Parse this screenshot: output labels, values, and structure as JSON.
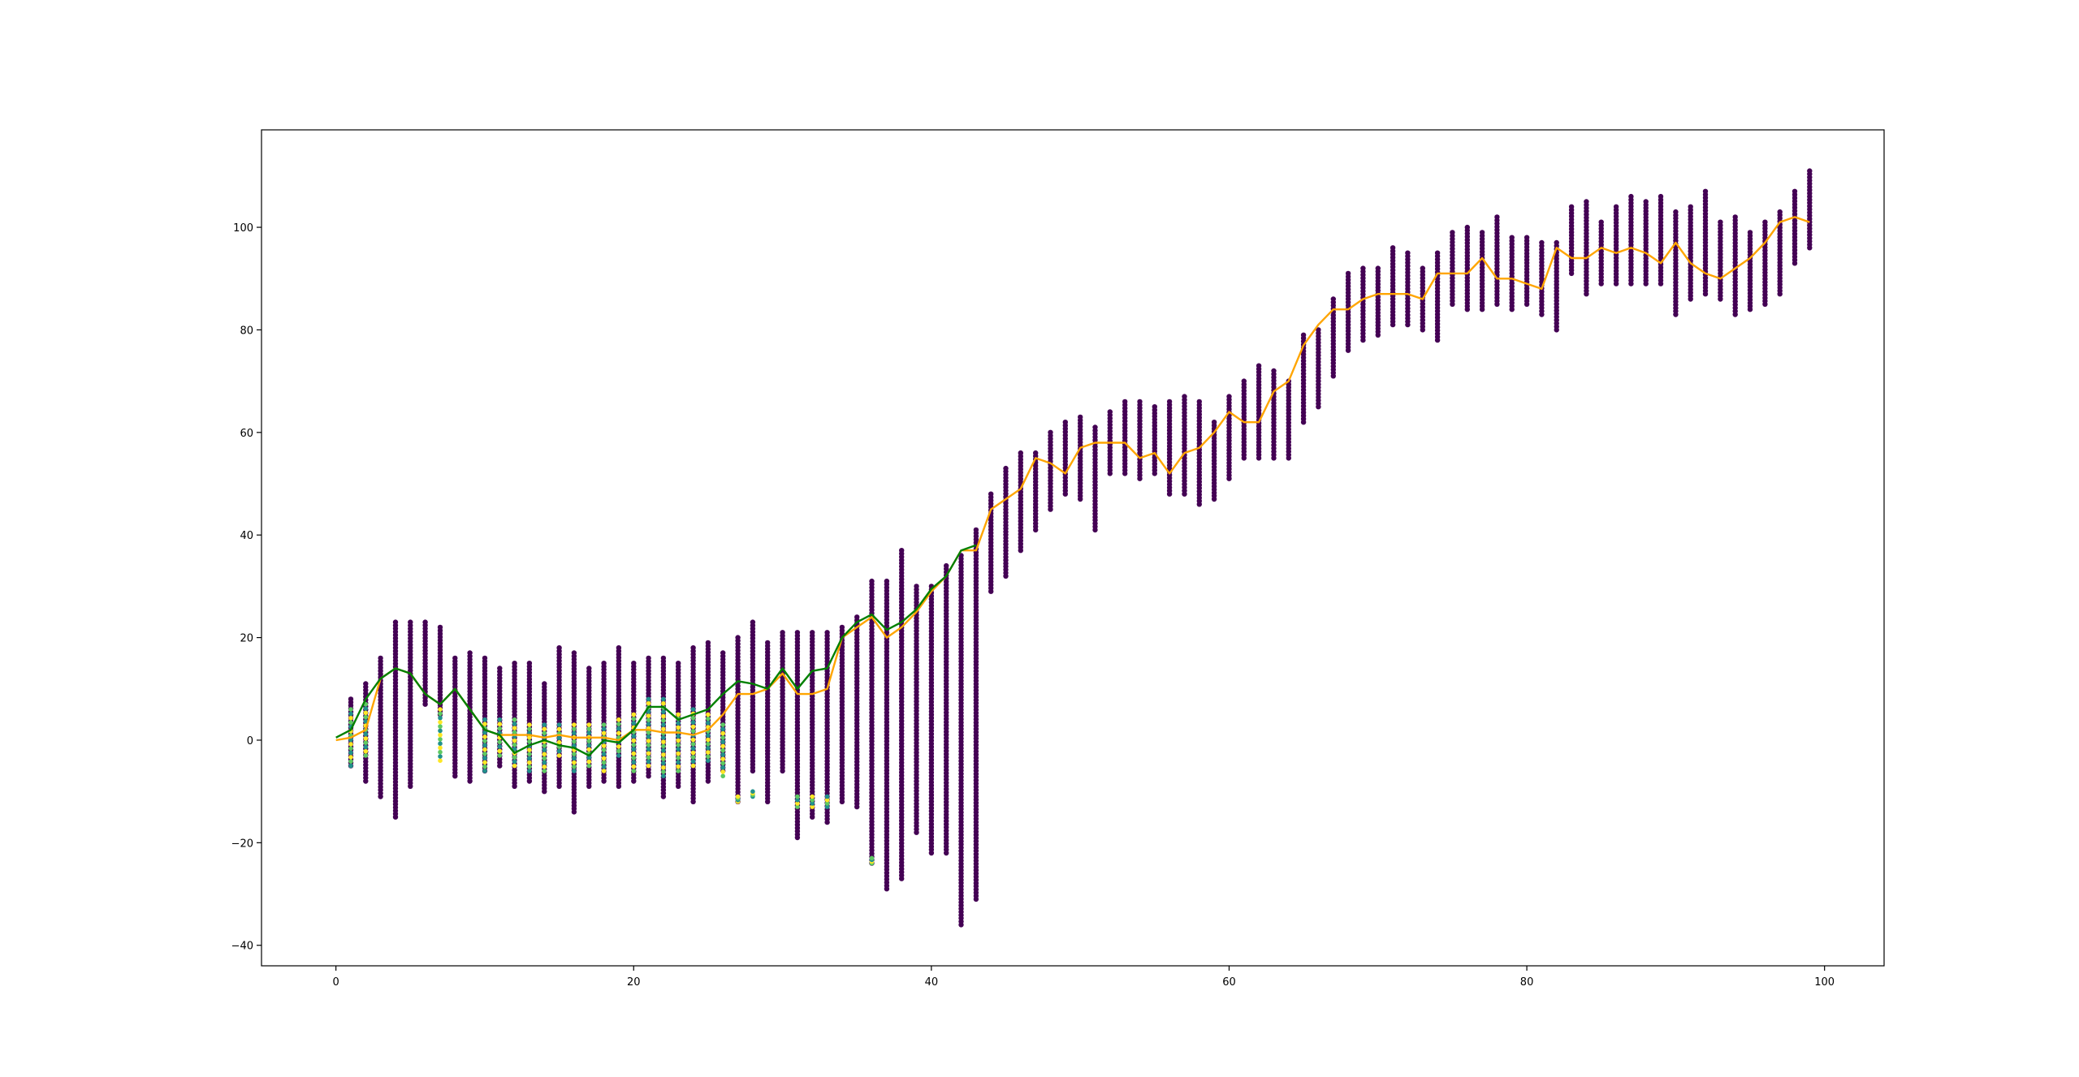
{
  "chart_data": {
    "type": "scatter",
    "title": "",
    "xlabel": "",
    "ylabel": "",
    "xlim": [
      -5,
      104
    ],
    "ylim": [
      -44,
      119
    ],
    "x_ticks": [
      0,
      20,
      40,
      60,
      80,
      100
    ],
    "y_ticks": [
      -40,
      -20,
      0,
      20,
      40,
      60,
      80,
      100
    ],
    "x_tick_labels": [
      "0",
      "20",
      "40",
      "60",
      "80",
      "100"
    ],
    "y_tick_labels": [
      "−40",
      "−20",
      "0",
      "20",
      "40",
      "60",
      "80",
      "100"
    ],
    "grid": false,
    "legend": "none",
    "colors": {
      "scatter_primary": "#440154",
      "scatter_teal": "#21918c",
      "scatter_green": "#5ec962",
      "scatter_yellow": "#fde725",
      "line_green": "#008000",
      "line_orange": "#ffa500"
    },
    "series": [
      {
        "kind": "line",
        "color": "#ffa500",
        "x": [
          0,
          1,
          2,
          3,
          4,
          5,
          6,
          7,
          8,
          9,
          10,
          11,
          12,
          13,
          14,
          15,
          16,
          17,
          18,
          19,
          20,
          21,
          22,
          23,
          24,
          25,
          26,
          27,
          28,
          29,
          30,
          31,
          32,
          33,
          34,
          35,
          36,
          37,
          38,
          39,
          40,
          41,
          42,
          43,
          44,
          45,
          46,
          47,
          48,
          49,
          50,
          51,
          52,
          53,
          54,
          55,
          56,
          57,
          58,
          59,
          60,
          61,
          62,
          63,
          64,
          65,
          66,
          67,
          68,
          69,
          70,
          71,
          72,
          73,
          74,
          75,
          76,
          77,
          78,
          79,
          80,
          81,
          82,
          83,
          84,
          85,
          86,
          87,
          88,
          89,
          90,
          91,
          92,
          93,
          94,
          95,
          96,
          97,
          98,
          99
        ],
        "y": [
          0,
          0.5,
          2,
          12,
          14,
          13,
          9,
          7,
          10,
          6,
          2,
          1,
          1,
          1,
          0.5,
          1,
          0.5,
          0.5,
          0.5,
          0,
          2,
          2,
          1.5,
          1.5,
          1,
          2,
          5,
          9,
          9,
          10,
          13,
          9,
          9,
          10,
          20,
          22,
          24,
          20,
          22,
          25,
          29,
          32,
          37,
          37,
          45,
          47,
          49,
          55,
          54,
          52,
          57,
          58,
          58,
          58,
          55,
          56,
          52,
          56,
          57,
          60,
          64,
          62,
          62,
          68,
          70,
          77,
          81,
          84,
          84,
          86,
          87,
          87,
          87,
          86,
          91,
          91,
          91,
          94,
          90,
          90,
          89,
          88,
          96,
          94,
          94,
          96,
          95,
          96,
          95,
          93,
          97,
          93,
          91,
          90,
          92,
          94,
          97,
          101,
          102,
          101
        ]
      },
      {
        "kind": "line",
        "color": "#008000",
        "x": [
          0,
          1,
          2,
          3,
          4,
          5,
          6,
          7,
          8,
          9,
          10,
          11,
          12,
          13,
          14,
          15,
          16,
          17,
          18,
          19,
          20,
          21,
          22,
          23,
          24,
          25,
          26,
          27,
          28,
          29,
          30,
          31,
          32,
          33,
          34,
          35,
          36,
          37,
          38,
          39,
          40,
          41,
          42,
          43
        ],
        "y": [
          0.5,
          2,
          8,
          12,
          14,
          13,
          9,
          7,
          10,
          6,
          2,
          1,
          -2.5,
          -1,
          0,
          -1,
          -1.5,
          -3,
          0,
          -0.5,
          2,
          6.5,
          6.5,
          4,
          5,
          6,
          9,
          11.5,
          11,
          10,
          14,
          10,
          13.5,
          14,
          20,
          23,
          24.5,
          21.5,
          23,
          25.5,
          29.5,
          32,
          37,
          38
        ]
      }
    ],
    "scatter_clusters": [
      {
        "x": 1,
        "ymin": -5,
        "ymax": 8
      },
      {
        "x": 2,
        "ymin": -8,
        "ymax": 11
      },
      {
        "x": 3,
        "ymin": -11,
        "ymax": 16
      },
      {
        "x": 4,
        "ymin": -15,
        "ymax": 23
      },
      {
        "x": 5,
        "ymin": -9,
        "ymax": 23
      },
      {
        "x": 6,
        "ymin": 7,
        "ymax": 23
      },
      {
        "x": 7,
        "ymin": 5,
        "ymax": 22
      },
      {
        "x": 8,
        "ymin": -7,
        "ymax": 16
      },
      {
        "x": 9,
        "ymin": -8,
        "ymax": 17
      },
      {
        "x": 10,
        "ymin": -6,
        "ymax": 16
      },
      {
        "x": 11,
        "ymin": -5,
        "ymax": 14
      },
      {
        "x": 12,
        "ymin": -9,
        "ymax": 15
      },
      {
        "x": 13,
        "ymin": -8,
        "ymax": 15
      },
      {
        "x": 14,
        "ymin": -10,
        "ymax": 11
      },
      {
        "x": 15,
        "ymin": -9,
        "ymax": 18
      },
      {
        "x": 16,
        "ymin": -14,
        "ymax": 17
      },
      {
        "x": 17,
        "ymin": -9,
        "ymax": 14
      },
      {
        "x": 18,
        "ymin": -8,
        "ymax": 15
      },
      {
        "x": 19,
        "ymin": -9,
        "ymax": 18
      },
      {
        "x": 20,
        "ymin": -8,
        "ymax": 15
      },
      {
        "x": 21,
        "ymin": -7,
        "ymax": 16
      },
      {
        "x": 22,
        "ymin": -11,
        "ymax": 16
      },
      {
        "x": 23,
        "ymin": -9,
        "ymax": 15
      },
      {
        "x": 24,
        "ymin": -12,
        "ymax": 18
      },
      {
        "x": 25,
        "ymin": -8,
        "ymax": 19
      },
      {
        "x": 26,
        "ymin": -6,
        "ymax": 17
      },
      {
        "x": 27,
        "ymin": -12,
        "ymax": 20
      },
      {
        "x": 28,
        "ymin": -6,
        "ymax": 23
      },
      {
        "x": 29,
        "ymin": -12,
        "ymax": 19
      },
      {
        "x": 30,
        "ymin": -6,
        "ymax": 21
      },
      {
        "x": 31,
        "ymin": -19,
        "ymax": 21
      },
      {
        "x": 32,
        "ymin": -15,
        "ymax": 21
      },
      {
        "x": 33,
        "ymin": -16,
        "ymax": 21
      },
      {
        "x": 34,
        "ymin": -12,
        "ymax": 22
      },
      {
        "x": 35,
        "ymin": -13,
        "ymax": 24
      },
      {
        "x": 36,
        "ymin": -24,
        "ymax": 31
      },
      {
        "x": 37,
        "ymin": -29,
        "ymax": 31
      },
      {
        "x": 38,
        "ymin": -27,
        "ymax": 37
      },
      {
        "x": 39,
        "ymin": -18,
        "ymax": 30
      },
      {
        "x": 40,
        "ymin": -22,
        "ymax": 30
      },
      {
        "x": 41,
        "ymin": -22,
        "ymax": 34
      },
      {
        "x": 42,
        "ymin": -36,
        "ymax": 36
      },
      {
        "x": 43,
        "ymin": -31,
        "ymax": 41
      },
      {
        "x": 44,
        "ymin": 29,
        "ymax": 48
      },
      {
        "x": 45,
        "ymin": 32,
        "ymax": 53
      },
      {
        "x": 46,
        "ymin": 37,
        "ymax": 56
      },
      {
        "x": 47,
        "ymin": 41,
        "ymax": 56
      },
      {
        "x": 48,
        "ymin": 45,
        "ymax": 60
      },
      {
        "x": 49,
        "ymin": 48,
        "ymax": 62
      },
      {
        "x": 50,
        "ymin": 47,
        "ymax": 63
      },
      {
        "x": 51,
        "ymin": 41,
        "ymax": 61
      },
      {
        "x": 52,
        "ymin": 52,
        "ymax": 64
      },
      {
        "x": 53,
        "ymin": 52,
        "ymax": 66
      },
      {
        "x": 54,
        "ymin": 51,
        "ymax": 66
      },
      {
        "x": 55,
        "ymin": 52,
        "ymax": 65
      },
      {
        "x": 56,
        "ymin": 48,
        "ymax": 66
      },
      {
        "x": 57,
        "ymin": 48,
        "ymax": 67
      },
      {
        "x": 58,
        "ymin": 46,
        "ymax": 66
      },
      {
        "x": 59,
        "ymin": 47,
        "ymax": 62
      },
      {
        "x": 60,
        "ymin": 51,
        "ymax": 67
      },
      {
        "x": 61,
        "ymin": 55,
        "ymax": 70
      },
      {
        "x": 62,
        "ymin": 55,
        "ymax": 73
      },
      {
        "x": 63,
        "ymin": 55,
        "ymax": 72
      },
      {
        "x": 64,
        "ymin": 55,
        "ymax": 70
      },
      {
        "x": 65,
        "ymin": 62,
        "ymax": 79
      },
      {
        "x": 66,
        "ymin": 65,
        "ymax": 80
      },
      {
        "x": 67,
        "ymin": 71,
        "ymax": 86
      },
      {
        "x": 68,
        "ymin": 76,
        "ymax": 91
      },
      {
        "x": 69,
        "ymin": 78,
        "ymax": 92
      },
      {
        "x": 70,
        "ymin": 79,
        "ymax": 92
      },
      {
        "x": 71,
        "ymin": 81,
        "ymax": 96
      },
      {
        "x": 72,
        "ymin": 81,
        "ymax": 95
      },
      {
        "x": 73,
        "ymin": 80,
        "ymax": 92
      },
      {
        "x": 74,
        "ymin": 78,
        "ymax": 95
      },
      {
        "x": 75,
        "ymin": 85,
        "ymax": 99
      },
      {
        "x": 76,
        "ymin": 84,
        "ymax": 100
      },
      {
        "x": 77,
        "ymin": 84,
        "ymax": 99
      },
      {
        "x": 78,
        "ymin": 85,
        "ymax": 102
      },
      {
        "x": 79,
        "ymin": 84,
        "ymax": 98
      },
      {
        "x": 80,
        "ymin": 85,
        "ymax": 98
      },
      {
        "x": 81,
        "ymin": 83,
        "ymax": 97
      },
      {
        "x": 82,
        "ymin": 80,
        "ymax": 97
      },
      {
        "x": 83,
        "ymin": 91,
        "ymax": 104
      },
      {
        "x": 84,
        "ymin": 87,
        "ymax": 105
      },
      {
        "x": 85,
        "ymin": 89,
        "ymax": 101
      },
      {
        "x": 86,
        "ymin": 89,
        "ymax": 104
      },
      {
        "x": 87,
        "ymin": 89,
        "ymax": 106
      },
      {
        "x": 88,
        "ymin": 89,
        "ymax": 105
      },
      {
        "x": 89,
        "ymin": 89,
        "ymax": 106
      },
      {
        "x": 90,
        "ymin": 83,
        "ymax": 103
      },
      {
        "x": 91,
        "ymin": 86,
        "ymax": 104
      },
      {
        "x": 92,
        "ymin": 87,
        "ymax": 107
      },
      {
        "x": 93,
        "ymin": 86,
        "ymax": 101
      },
      {
        "x": 94,
        "ymin": 83,
        "ymax": 102
      },
      {
        "x": 95,
        "ymin": 84,
        "ymax": 99
      },
      {
        "x": 96,
        "ymin": 85,
        "ymax": 101
      },
      {
        "x": 97,
        "ymin": 87,
        "ymax": 103
      },
      {
        "x": 98,
        "ymin": 93,
        "ymax": 107
      },
      {
        "x": 99,
        "ymin": 96,
        "ymax": 111
      }
    ],
    "highlight_clusters": [
      {
        "x": 1,
        "ymin": -5,
        "ymax": 6
      },
      {
        "x": 2,
        "ymin": -3,
        "ymax": 7
      },
      {
        "x": 7,
        "ymin": -4,
        "ymax": 6
      },
      {
        "x": 10,
        "ymin": -6,
        "ymax": 4
      },
      {
        "x": 11,
        "ymin": -3,
        "ymax": 4
      },
      {
        "x": 12,
        "ymin": -5,
        "ymax": 4
      },
      {
        "x": 13,
        "ymin": -6,
        "ymax": 3
      },
      {
        "x": 14,
        "ymin": -6,
        "ymax": 3
      },
      {
        "x": 15,
        "ymin": -3,
        "ymax": 3
      },
      {
        "x": 16,
        "ymin": -6,
        "ymax": 3
      },
      {
        "x": 17,
        "ymin": -5,
        "ymax": 3
      },
      {
        "x": 18,
        "ymin": -6,
        "ymax": 3
      },
      {
        "x": 19,
        "ymin": -3,
        "ymax": 4
      },
      {
        "x": 20,
        "ymin": -6,
        "ymax": 5
      },
      {
        "x": 21,
        "ymin": -5,
        "ymax": 8
      },
      {
        "x": 22,
        "ymin": -7,
        "ymax": 8
      },
      {
        "x": 23,
        "ymin": -6,
        "ymax": 5
      },
      {
        "x": 24,
        "ymin": -5,
        "ymax": 6
      },
      {
        "x": 25,
        "ymin": -4,
        "ymax": 5
      },
      {
        "x": 26,
        "ymin": -7,
        "ymax": 3
      },
      {
        "x": 27,
        "ymin": -12,
        "ymax": -11
      },
      {
        "x": 28,
        "ymin": -11,
        "ymax": -10
      },
      {
        "x": 31,
        "ymin": -13,
        "ymax": -11
      },
      {
        "x": 32,
        "ymin": -13,
        "ymax": -11
      },
      {
        "x": 33,
        "ymin": -13,
        "ymax": -11
      },
      {
        "x": 36,
        "ymin": -24,
        "ymax": -23
      }
    ]
  }
}
